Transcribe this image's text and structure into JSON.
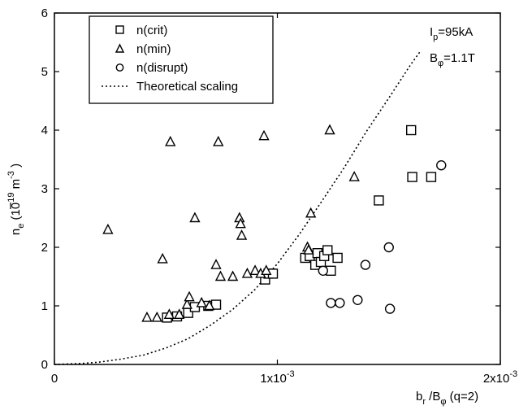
{
  "chart_data": {
    "type": "scatter",
    "xlim": [
      0,
      0.002
    ],
    "ylim": [
      0,
      6
    ],
    "x_ticks": [
      {
        "value": 0,
        "label": "0"
      },
      {
        "value": 0.001,
        "label": "1x10",
        "exp": "-3"
      },
      {
        "value": 0.002,
        "label": "2x10",
        "exp": "-3"
      }
    ],
    "y_ticks": [
      {
        "value": 0,
        "label": "0"
      },
      {
        "value": 1,
        "label": "1"
      },
      {
        "value": 2,
        "label": "2"
      },
      {
        "value": 3,
        "label": "3"
      },
      {
        "value": 4,
        "label": "4"
      },
      {
        "value": 5,
        "label": "5"
      },
      {
        "value": 6,
        "label": "6"
      }
    ],
    "xlabel": {
      "b": "b",
      "b_sub": "r",
      "slash": " /B",
      "phi_sub": "φ",
      "q": " (q=2)"
    },
    "ylabel": {
      "n": "n",
      "n_sub": "e",
      "units_open": " (10",
      "units_exp1": "19",
      "units_m": " m",
      "units_exp2": "-3",
      "units_close": " )"
    },
    "annotations": {
      "ip_main": "I",
      "ip_sub": "p",
      "ip_value": "=95kA",
      "bphi_main": "B",
      "bphi_sub": "φ",
      "bphi_value": "=1.1T"
    },
    "legend": {
      "position": "top-left",
      "entries": [
        {
          "marker": "square",
          "label": "n(crit)"
        },
        {
          "marker": "triangle",
          "label": "n(min)"
        },
        {
          "marker": "circle",
          "label": "n(disrupt)"
        },
        {
          "marker": "dotted-line",
          "label": "Theoretical scaling"
        }
      ]
    },
    "grid": false,
    "series": [
      {
        "name": "n(crit)",
        "marker": "square",
        "points": [
          [
            0.000505,
            0.8
          ],
          [
            0.00055,
            0.82
          ],
          [
            0.0006,
            0.88
          ],
          [
            0.00063,
            0.98
          ],
          [
            0.00069,
            1.0
          ],
          [
            0.000725,
            1.02
          ],
          [
            0.000945,
            1.45
          ],
          [
            0.00096,
            1.55
          ],
          [
            0.00098,
            1.55
          ],
          [
            0.001125,
            1.82
          ],
          [
            0.001145,
            1.85
          ],
          [
            0.00117,
            1.7
          ],
          [
            0.00118,
            1.9
          ],
          [
            0.001195,
            1.75
          ],
          [
            0.00121,
            1.85
          ],
          [
            0.001225,
            1.95
          ],
          [
            0.00124,
            1.6
          ],
          [
            0.00127,
            1.82
          ],
          [
            0.001455,
            2.8
          ],
          [
            0.0016,
            4.0
          ],
          [
            0.001605,
            3.2
          ],
          [
            0.00169,
            3.2
          ]
        ]
      },
      {
        "name": "n(min)",
        "marker": "triangle",
        "points": [
          [
            0.00024,
            2.3
          ],
          [
            0.000415,
            0.8
          ],
          [
            0.00046,
            0.8
          ],
          [
            0.000485,
            1.8
          ],
          [
            0.000515,
            0.85
          ],
          [
            0.00052,
            3.8
          ],
          [
            0.00056,
            0.85
          ],
          [
            0.000595,
            1.02
          ],
          [
            0.000605,
            1.15
          ],
          [
            0.00063,
            2.5
          ],
          [
            0.00066,
            1.05
          ],
          [
            0.000695,
            1.0
          ],
          [
            0.000725,
            1.7
          ],
          [
            0.000735,
            3.8
          ],
          [
            0.000745,
            1.5
          ],
          [
            0.0008,
            1.5
          ],
          [
            0.00083,
            2.5
          ],
          [
            0.000835,
            2.4
          ],
          [
            0.00084,
            2.2
          ],
          [
            0.000865,
            1.55
          ],
          [
            0.0009,
            1.6
          ],
          [
            0.000925,
            1.55
          ],
          [
            0.00094,
            3.9
          ],
          [
            0.00095,
            1.6
          ],
          [
            0.001135,
            2.0
          ],
          [
            0.00114,
            1.95
          ],
          [
            0.00115,
            2.58
          ],
          [
            0.001235,
            4.0
          ],
          [
            0.001345,
            3.2
          ]
        ]
      },
      {
        "name": "n(disrupt)",
        "marker": "circle",
        "points": [
          [
            0.001205,
            1.6
          ],
          [
            0.00124,
            1.05
          ],
          [
            0.00128,
            1.05
          ],
          [
            0.00136,
            1.1
          ],
          [
            0.001395,
            1.7
          ],
          [
            0.0015,
            2.0
          ],
          [
            0.001505,
            0.95
          ],
          [
            0.001735,
            3.4
          ]
        ]
      },
      {
        "name": "Theoretical scaling",
        "line": "dotted",
        "points": [
          [
            0.0,
            0.0
          ],
          [
            0.00012,
            0.016
          ],
          [
            0.0002,
            0.039
          ],
          [
            0.0003,
            0.091
          ],
          [
            0.0004,
            0.16
          ],
          [
            0.0005,
            0.28
          ],
          [
            0.0006,
            0.44
          ],
          [
            0.0007,
            0.67
          ],
          [
            0.0008,
            0.94
          ],
          [
            0.0009,
            1.28
          ],
          [
            0.001,
            1.72
          ],
          [
            0.0011,
            2.23
          ],
          [
            0.0012,
            2.79
          ],
          [
            0.0013,
            3.36
          ],
          [
            0.0014,
            3.98
          ],
          [
            0.0015,
            4.55
          ],
          [
            0.0016,
            5.13
          ],
          [
            0.00164,
            5.34
          ]
        ]
      }
    ]
  }
}
